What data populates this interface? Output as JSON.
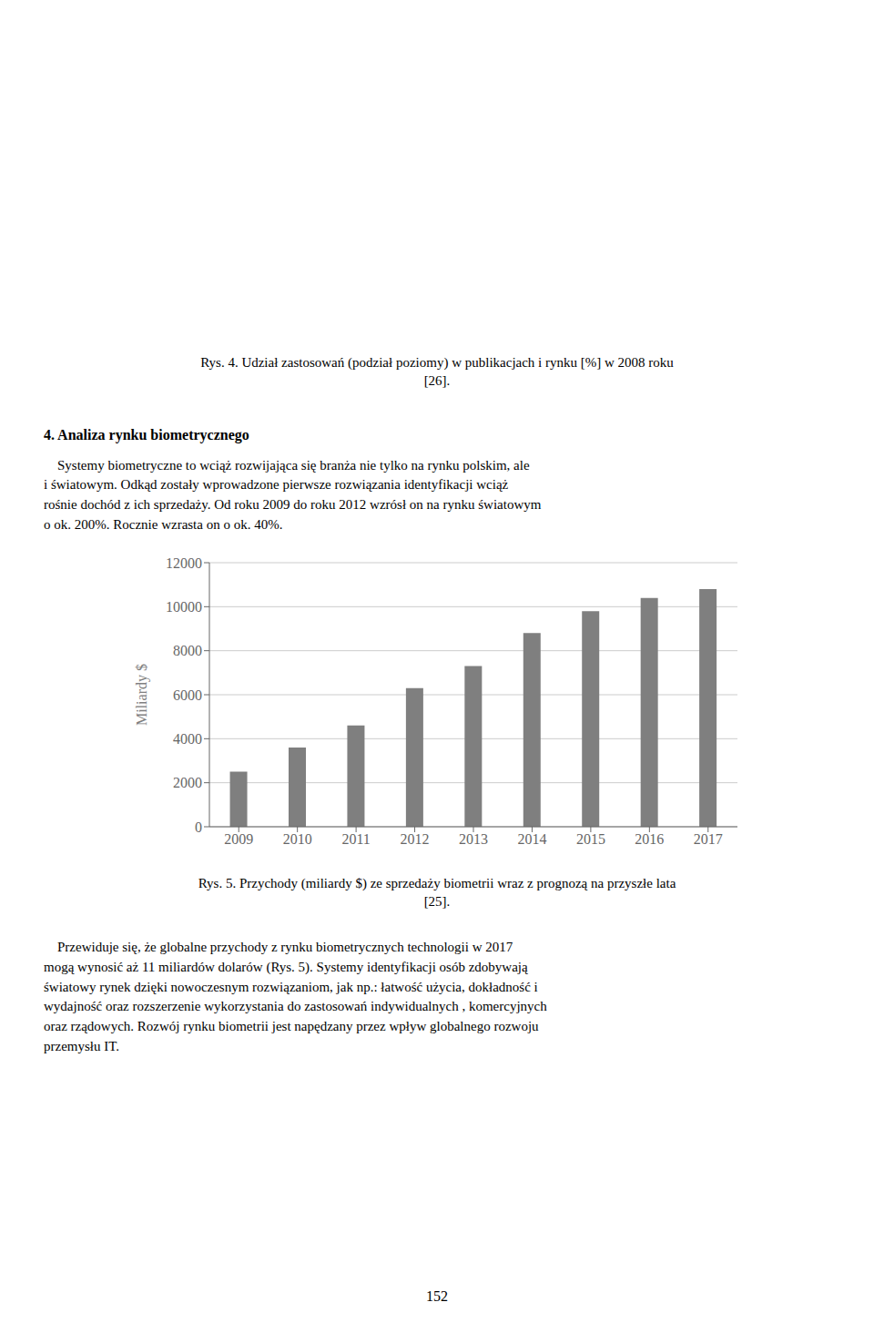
{
  "chart_data": {
    "type": "bar",
    "categories": [
      "2009",
      "2010",
      "2011",
      "2012",
      "2013",
      "2014",
      "2015",
      "2016",
      "2017"
    ],
    "values": [
      2500,
      3600,
      4600,
      6300,
      7300,
      8800,
      9800,
      10400,
      10800
    ],
    "color": "#7f7f7f",
    "ylabel": "Miliardy $",
    "ylim": [
      0,
      12000
    ],
    "yticks": [
      0,
      2000,
      4000,
      6000,
      8000,
      10000,
      12000
    ],
    "grid": true,
    "annotations": [
      "Rys. 4. Udział zastosowań (podział poziomy) w publikacjach i rynku [%] w 2008 roku\n[26].",
      "4. Analiza rynku biometrycznego",
      "    Systemy biometryczne to wciąż rozwijająca się branża nie tylko na rynku polskim, ale\ni światowym. Odkąd zostały wprowadzone pierwsze rozwiązania identyfikacji wciąż\nrośnie dochód z ich sprzedaży. Od roku 2009 do roku 2012 wzrósł on na rynku światowym\no ok. 200%. Rocznie wzrasta on o ok. 40%.",
      "Rys. 5. Przychody (miliardy $) ze sprzedaży biometrii wraz z prognozą na przyszłe lata\n[25].",
      "    Przewiduje się, że globalne przychody z rynku biometrycznych technologii w 2017\nmogą wynosić aż 11 miliardów dolarów (Rys. 5). Systemy identyfikacji osób zdobywają\nświatowy rynek dzięki nowoczesnym rozwiązaniom, jak np.: łatwość użycia, dokładność i\nwydajność oraz rozszerzenie wykorzystania do zastosowań indywidualnych , komercyjnych\noraz rządowych. Rozwój rynku biometrii jest napędzany przez wpływ globalnego rozwoju\nprzemysłu IT.",
      "152"
    ]
  }
}
